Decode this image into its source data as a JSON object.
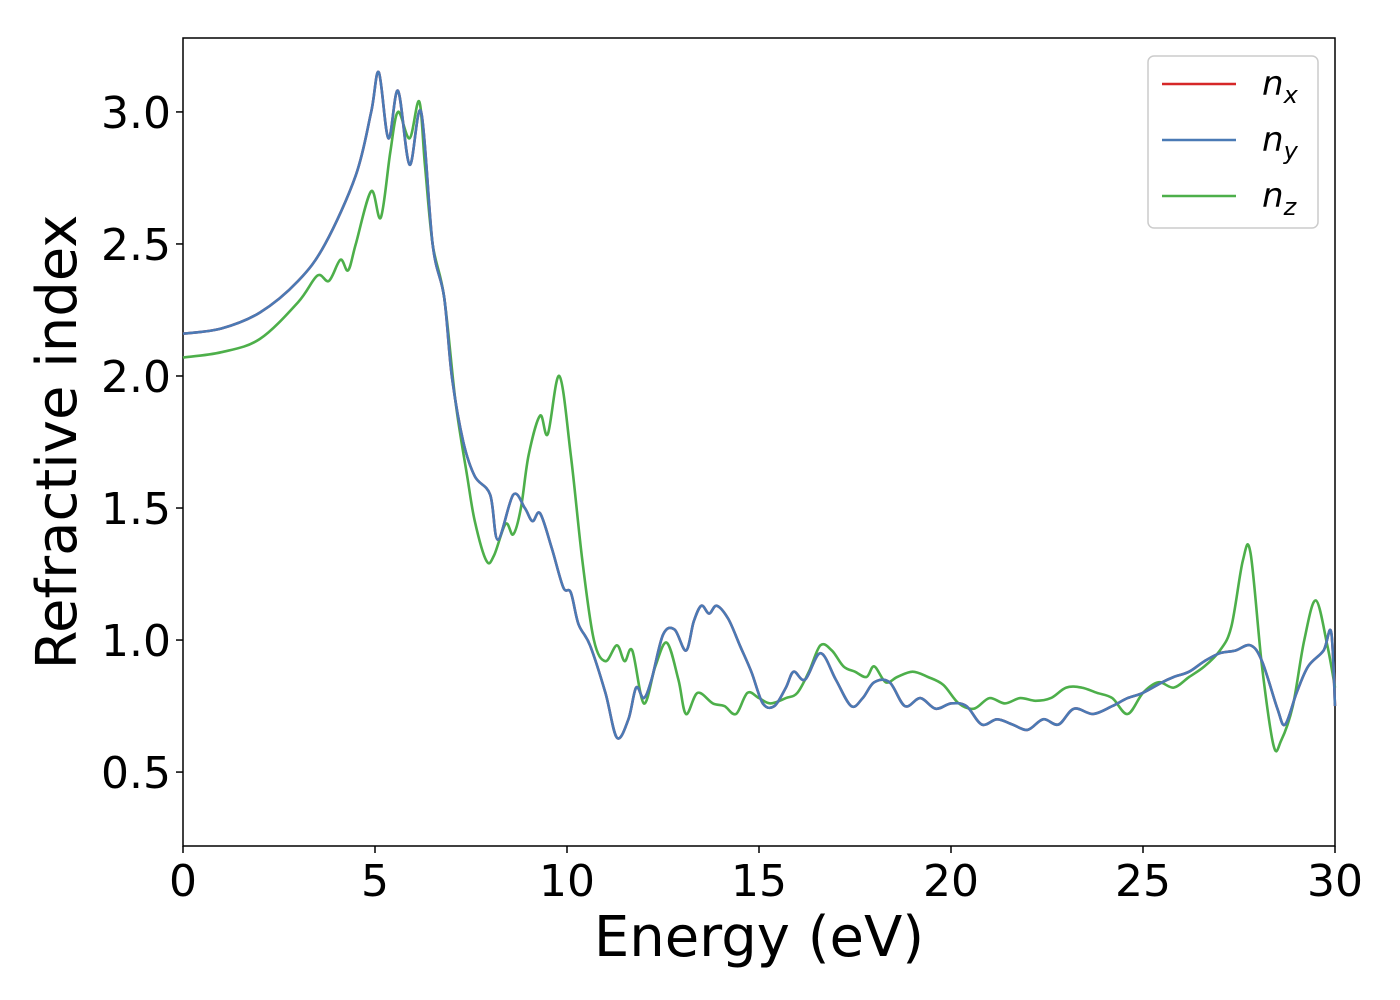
{
  "chart_data": {
    "type": "line",
    "title": "",
    "xlabel": "Energy (eV)",
    "ylabel": "Refractive index",
    "xlim": [
      0,
      30
    ],
    "ylim": [
      0.22,
      3.28
    ],
    "xticks": [
      0,
      5,
      10,
      15,
      20,
      25,
      30
    ],
    "yticks": [
      0.5,
      1.0,
      1.5,
      2.0,
      2.5,
      3.0
    ],
    "xtick_labels": [
      "0",
      "5",
      "10",
      "15",
      "20",
      "25",
      "30"
    ],
    "ytick_labels": [
      "0.5",
      "1.0",
      "1.5",
      "2.0",
      "2.5",
      "3.0"
    ],
    "grid": false,
    "legend_position": "top-right",
    "series": [
      {
        "name": "n",
        "subscript": "x",
        "color": "#d62728",
        "points": [
          [
            0,
            2.16
          ],
          [
            1,
            2.18
          ],
          [
            2,
            2.24
          ],
          [
            3,
            2.36
          ],
          [
            3.7,
            2.5
          ],
          [
            4.5,
            2.76
          ],
          [
            4.9,
            3.0
          ],
          [
            5.1,
            3.15
          ],
          [
            5.35,
            2.9
          ],
          [
            5.6,
            3.08
          ],
          [
            5.9,
            2.8
          ],
          [
            6.2,
            3.0
          ],
          [
            6.5,
            2.5
          ],
          [
            6.8,
            2.3
          ],
          [
            7.0,
            2.0
          ],
          [
            7.3,
            1.75
          ],
          [
            7.6,
            1.62
          ],
          [
            8.0,
            1.55
          ],
          [
            8.2,
            1.38
          ],
          [
            8.6,
            1.55
          ],
          [
            8.9,
            1.5
          ],
          [
            9.1,
            1.45
          ],
          [
            9.3,
            1.48
          ],
          [
            9.6,
            1.35
          ],
          [
            9.9,
            1.2
          ],
          [
            10.1,
            1.18
          ],
          [
            10.3,
            1.06
          ],
          [
            10.6,
            0.98
          ],
          [
            11.0,
            0.8
          ],
          [
            11.3,
            0.63
          ],
          [
            11.6,
            0.7
          ],
          [
            11.8,
            0.82
          ],
          [
            12.0,
            0.78
          ],
          [
            12.2,
            0.85
          ],
          [
            12.5,
            1.02
          ],
          [
            12.8,
            1.04
          ],
          [
            13.1,
            0.96
          ],
          [
            13.3,
            1.07
          ],
          [
            13.5,
            1.13
          ],
          [
            13.7,
            1.1
          ],
          [
            13.9,
            1.13
          ],
          [
            14.2,
            1.08
          ],
          [
            14.5,
            0.98
          ],
          [
            14.8,
            0.88
          ],
          [
            15.1,
            0.76
          ],
          [
            15.4,
            0.75
          ],
          [
            15.7,
            0.82
          ],
          [
            15.9,
            0.88
          ],
          [
            16.2,
            0.85
          ],
          [
            16.6,
            0.95
          ],
          [
            17.0,
            0.85
          ],
          [
            17.4,
            0.75
          ],
          [
            17.7,
            0.78
          ],
          [
            18.0,
            0.84
          ],
          [
            18.4,
            0.84
          ],
          [
            18.8,
            0.75
          ],
          [
            19.2,
            0.78
          ],
          [
            19.6,
            0.74
          ],
          [
            20.0,
            0.76
          ],
          [
            20.4,
            0.75
          ],
          [
            20.8,
            0.68
          ],
          [
            21.2,
            0.7
          ],
          [
            21.6,
            0.68
          ],
          [
            22.0,
            0.66
          ],
          [
            22.4,
            0.7
          ],
          [
            22.8,
            0.68
          ],
          [
            23.2,
            0.74
          ],
          [
            23.7,
            0.72
          ],
          [
            24.2,
            0.75
          ],
          [
            24.6,
            0.78
          ],
          [
            25.0,
            0.8
          ],
          [
            25.5,
            0.84
          ],
          [
            25.8,
            0.86
          ],
          [
            26.2,
            0.88
          ],
          [
            26.6,
            0.92
          ],
          [
            27.0,
            0.95
          ],
          [
            27.4,
            0.96
          ],
          [
            27.8,
            0.98
          ],
          [
            28.1,
            0.92
          ],
          [
            28.5,
            0.74
          ],
          [
            28.7,
            0.68
          ],
          [
            29.0,
            0.8
          ],
          [
            29.3,
            0.9
          ],
          [
            29.7,
            0.96
          ],
          [
            29.9,
            1.03
          ],
          [
            30.0,
            0.75
          ]
        ]
      },
      {
        "name": "n",
        "subscript": "y",
        "color": "#4a7ab5",
        "points": [
          [
            0,
            2.16
          ],
          [
            1,
            2.18
          ],
          [
            2,
            2.24
          ],
          [
            3,
            2.36
          ],
          [
            3.7,
            2.5
          ],
          [
            4.5,
            2.76
          ],
          [
            4.9,
            3.0
          ],
          [
            5.1,
            3.15
          ],
          [
            5.35,
            2.9
          ],
          [
            5.6,
            3.08
          ],
          [
            5.9,
            2.8
          ],
          [
            6.2,
            3.0
          ],
          [
            6.5,
            2.5
          ],
          [
            6.8,
            2.3
          ],
          [
            7.0,
            2.0
          ],
          [
            7.3,
            1.75
          ],
          [
            7.6,
            1.62
          ],
          [
            8.0,
            1.55
          ],
          [
            8.2,
            1.38
          ],
          [
            8.6,
            1.55
          ],
          [
            8.9,
            1.5
          ],
          [
            9.1,
            1.45
          ],
          [
            9.3,
            1.48
          ],
          [
            9.6,
            1.35
          ],
          [
            9.9,
            1.2
          ],
          [
            10.1,
            1.18
          ],
          [
            10.3,
            1.06
          ],
          [
            10.6,
            0.98
          ],
          [
            11.0,
            0.8
          ],
          [
            11.3,
            0.63
          ],
          [
            11.6,
            0.7
          ],
          [
            11.8,
            0.82
          ],
          [
            12.0,
            0.78
          ],
          [
            12.2,
            0.85
          ],
          [
            12.5,
            1.02
          ],
          [
            12.8,
            1.04
          ],
          [
            13.1,
            0.96
          ],
          [
            13.3,
            1.07
          ],
          [
            13.5,
            1.13
          ],
          [
            13.7,
            1.1
          ],
          [
            13.9,
            1.13
          ],
          [
            14.2,
            1.08
          ],
          [
            14.5,
            0.98
          ],
          [
            14.8,
            0.88
          ],
          [
            15.1,
            0.76
          ],
          [
            15.4,
            0.75
          ],
          [
            15.7,
            0.82
          ],
          [
            15.9,
            0.88
          ],
          [
            16.2,
            0.85
          ],
          [
            16.6,
            0.95
          ],
          [
            17.0,
            0.85
          ],
          [
            17.4,
            0.75
          ],
          [
            17.7,
            0.78
          ],
          [
            18.0,
            0.84
          ],
          [
            18.4,
            0.84
          ],
          [
            18.8,
            0.75
          ],
          [
            19.2,
            0.78
          ],
          [
            19.6,
            0.74
          ],
          [
            20.0,
            0.76
          ],
          [
            20.4,
            0.75
          ],
          [
            20.8,
            0.68
          ],
          [
            21.2,
            0.7
          ],
          [
            21.6,
            0.68
          ],
          [
            22.0,
            0.66
          ],
          [
            22.4,
            0.7
          ],
          [
            22.8,
            0.68
          ],
          [
            23.2,
            0.74
          ],
          [
            23.7,
            0.72
          ],
          [
            24.2,
            0.75
          ],
          [
            24.6,
            0.78
          ],
          [
            25.0,
            0.8
          ],
          [
            25.5,
            0.84
          ],
          [
            25.8,
            0.86
          ],
          [
            26.2,
            0.88
          ],
          [
            26.6,
            0.92
          ],
          [
            27.0,
            0.95
          ],
          [
            27.4,
            0.96
          ],
          [
            27.8,
            0.98
          ],
          [
            28.1,
            0.92
          ],
          [
            28.5,
            0.74
          ],
          [
            28.7,
            0.68
          ],
          [
            29.0,
            0.8
          ],
          [
            29.3,
            0.9
          ],
          [
            29.7,
            0.96
          ],
          [
            29.9,
            1.03
          ],
          [
            30.0,
            0.75
          ]
        ]
      },
      {
        "name": "n",
        "subscript": "z",
        "color": "#4daf4a",
        "points": [
          [
            0,
            2.07
          ],
          [
            1,
            2.09
          ],
          [
            2,
            2.14
          ],
          [
            3,
            2.28
          ],
          [
            3.5,
            2.38
          ],
          [
            3.8,
            2.36
          ],
          [
            4.1,
            2.44
          ],
          [
            4.3,
            2.4
          ],
          [
            4.5,
            2.5
          ],
          [
            4.9,
            2.7
          ],
          [
            5.15,
            2.6
          ],
          [
            5.4,
            2.85
          ],
          [
            5.6,
            3.0
          ],
          [
            5.9,
            2.9
          ],
          [
            6.15,
            3.04
          ],
          [
            6.3,
            2.8
          ],
          [
            6.5,
            2.5
          ],
          [
            6.8,
            2.3
          ],
          [
            7.1,
            1.9
          ],
          [
            7.4,
            1.62
          ],
          [
            7.6,
            1.45
          ],
          [
            7.9,
            1.3
          ],
          [
            8.1,
            1.32
          ],
          [
            8.4,
            1.44
          ],
          [
            8.6,
            1.4
          ],
          [
            8.8,
            1.5
          ],
          [
            9.0,
            1.7
          ],
          [
            9.3,
            1.85
          ],
          [
            9.5,
            1.78
          ],
          [
            9.8,
            2.0
          ],
          [
            10.1,
            1.7
          ],
          [
            10.4,
            1.3
          ],
          [
            10.7,
            1.0
          ],
          [
            11.0,
            0.92
          ],
          [
            11.3,
            0.98
          ],
          [
            11.5,
            0.92
          ],
          [
            11.7,
            0.96
          ],
          [
            12.0,
            0.76
          ],
          [
            12.3,
            0.9
          ],
          [
            12.6,
            0.99
          ],
          [
            12.9,
            0.85
          ],
          [
            13.1,
            0.72
          ],
          [
            13.4,
            0.8
          ],
          [
            13.8,
            0.76
          ],
          [
            14.1,
            0.75
          ],
          [
            14.4,
            0.72
          ],
          [
            14.7,
            0.8
          ],
          [
            15.0,
            0.78
          ],
          [
            15.3,
            0.76
          ],
          [
            15.7,
            0.78
          ],
          [
            16.0,
            0.8
          ],
          [
            16.3,
            0.88
          ],
          [
            16.6,
            0.98
          ],
          [
            16.9,
            0.96
          ],
          [
            17.2,
            0.9
          ],
          [
            17.5,
            0.88
          ],
          [
            17.8,
            0.86
          ],
          [
            18.0,
            0.9
          ],
          [
            18.3,
            0.84
          ],
          [
            18.6,
            0.86
          ],
          [
            19.0,
            0.88
          ],
          [
            19.4,
            0.86
          ],
          [
            19.8,
            0.83
          ],
          [
            20.2,
            0.76
          ],
          [
            20.6,
            0.74
          ],
          [
            21.0,
            0.78
          ],
          [
            21.4,
            0.76
          ],
          [
            21.8,
            0.78
          ],
          [
            22.2,
            0.77
          ],
          [
            22.6,
            0.78
          ],
          [
            23.0,
            0.82
          ],
          [
            23.4,
            0.82
          ],
          [
            23.8,
            0.8
          ],
          [
            24.2,
            0.78
          ],
          [
            24.6,
            0.72
          ],
          [
            25.0,
            0.8
          ],
          [
            25.4,
            0.84
          ],
          [
            25.8,
            0.82
          ],
          [
            26.2,
            0.86
          ],
          [
            26.6,
            0.9
          ],
          [
            27.0,
            0.96
          ],
          [
            27.3,
            1.05
          ],
          [
            27.6,
            1.3
          ],
          [
            27.8,
            1.33
          ],
          [
            28.1,
            0.9
          ],
          [
            28.4,
            0.6
          ],
          [
            28.6,
            0.62
          ],
          [
            28.9,
            0.75
          ],
          [
            29.2,
            1.0
          ],
          [
            29.5,
            1.15
          ],
          [
            29.8,
            0.98
          ],
          [
            30.0,
            0.82
          ]
        ]
      }
    ]
  }
}
